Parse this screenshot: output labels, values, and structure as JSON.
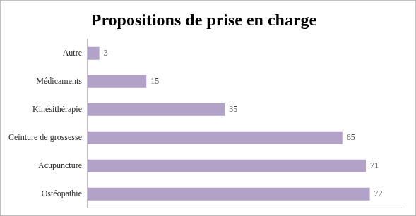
{
  "chart_data": {
    "type": "bar",
    "title": "Propositions de prise en charge",
    "orientation": "horizontal",
    "categories": [
      "Autre",
      "Médicaments",
      "Kinésithérapie",
      "Ceinture de grossesse",
      "Acupuncture",
      "Ostéopathie"
    ],
    "values": [
      3,
      15,
      35,
      65,
      71,
      72
    ],
    "color": "#b3a2c7",
    "xlim": [
      0,
      80
    ],
    "grid": false,
    "data_labels": true,
    "tick_labels": "y"
  }
}
